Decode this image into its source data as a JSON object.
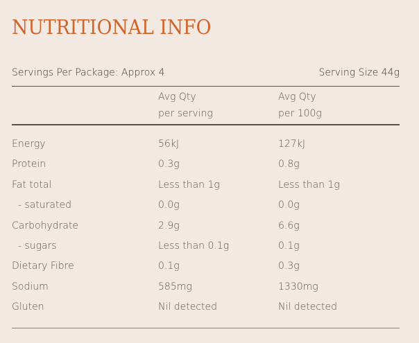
{
  "title": "NUTRITIONAL INFO",
  "servings_per_package": "Servings Per Package: Approx 4",
  "serving_size": "Serving Size 44g",
  "columns": [
    {
      "line1": "Avg Qty",
      "line2": "per serving"
    },
    {
      "line1": "Avg Qty",
      "line2": "per 100g"
    }
  ],
  "rows": [
    {
      "label": "Energy",
      "per_serving": "56kJ",
      "per_100g": "127kJ"
    },
    {
      "label": "Protein",
      "per_serving": "0.3g",
      "per_100g": "0.8g"
    },
    {
      "label": "Fat total",
      "per_serving": "Less than 1g",
      "per_100g": "Less than 1g"
    },
    {
      "label": "  - saturated",
      "per_serving": "0.0g",
      "per_100g": "0.0g"
    },
    {
      "label": "Carbohydrate",
      "per_serving": "2.9g",
      "per_100g": "6.6g"
    },
    {
      "label": "  - sugars",
      "per_serving": "Less than 0.1g",
      "per_100g": "0.1g"
    },
    {
      "label": "Dietary Fibre",
      "per_serving": "0.1g",
      "per_100g": "0.3g"
    },
    {
      "label": "Sodium",
      "per_serving": "585mg",
      "per_100g": "1330mg"
    },
    {
      "label": "Gluten",
      "per_serving": "Nil detected",
      "per_100g": "Nil detected"
    }
  ],
  "colors": {
    "title": "#d2642a",
    "background": "#f1e9e2",
    "text": "#3a3633"
  }
}
